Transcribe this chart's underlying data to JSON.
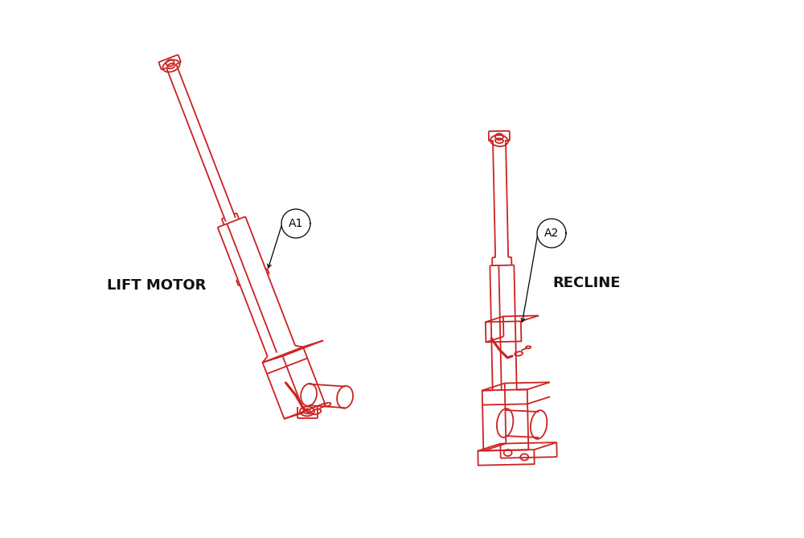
{
  "bg_color": "#ffffff",
  "line_color": "#cc2222",
  "label_color": "#111111",
  "lift_motor_label": "LIFT MOTOR",
  "recline_label": "RECLINE",
  "a1_label": "A1",
  "a2_label": "A2",
  "figsize": [
    10.0,
    6.69
  ],
  "dpi": 100,
  "lw": 1.3,
  "lw_red": 2.2,
  "circle_r": 18,
  "font_size_label": 13,
  "font_size_callout": 10
}
